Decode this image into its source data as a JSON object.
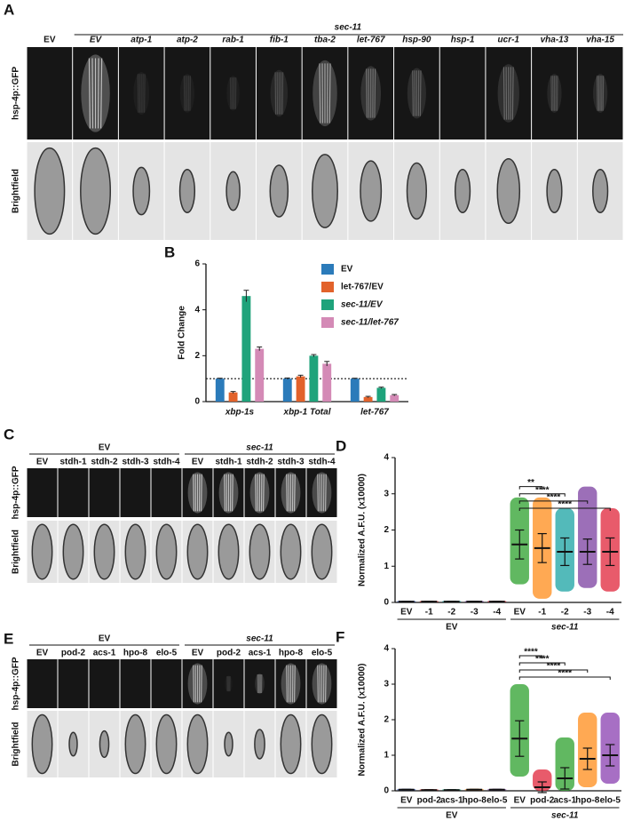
{
  "panel_a": {
    "label": "A",
    "group": "sec-11",
    "columns": [
      "EV",
      "EV",
      "atp-1",
      "atp-2",
      "rab-1",
      "fib-1",
      "tba-2",
      "let-767",
      "hsp-90",
      "hsp-1",
      "ucr-1",
      "vha-13",
      "vha-15"
    ],
    "rows": [
      "hsp-4p::GFP",
      "Brightfield"
    ]
  },
  "panel_c": {
    "label": "C",
    "groups": [
      "EV",
      "sec-11"
    ],
    "columns": [
      "EV",
      "stdh-1",
      "stdh-2",
      "stdh-3",
      "stdh-4",
      "EV",
      "stdh-1",
      "stdh-2",
      "stdh-3",
      "stdh-4"
    ],
    "rows": [
      "hsp-4p::GFP",
      "Brightfield"
    ]
  },
  "panel_e": {
    "label": "E",
    "groups": [
      "EV",
      "sec-11"
    ],
    "columns": [
      "EV",
      "pod-2",
      "acs-1",
      "hpo-8",
      "elo-5",
      "EV",
      "pod-2",
      "acs-1",
      "hpo-8",
      "elo-5"
    ],
    "rows": [
      "hsp-4p::GFP",
      "Brightfield"
    ]
  },
  "chart_data": [
    {
      "type": "bar",
      "panel_label": "B",
      "y_label": "Fold Change",
      "categories": [
        "xbp-1s",
        "xbp-1 Total",
        "let-767"
      ],
      "series": [
        {
          "name": "EV",
          "color": "#2b7bba",
          "values": [
            1.0,
            1.0,
            1.0
          ],
          "errors": [
            0.02,
            0.03,
            0.02
          ]
        },
        {
          "name": "let-767/EV",
          "color": "#e2622b",
          "values": [
            0.4,
            1.1,
            0.2
          ],
          "errors": [
            0.04,
            0.05,
            0.03
          ]
        },
        {
          "name": "sec-11/EV",
          "color": "#1fa37b",
          "values": [
            4.6,
            2.0,
            0.6
          ],
          "errors": [
            0.25,
            0.05,
            0.03
          ]
        },
        {
          "name": "sec-11/let-767",
          "color": "#d48ab6",
          "values": [
            2.3,
            1.65,
            0.28
          ],
          "errors": [
            0.08,
            0.1,
            0.03
          ]
        }
      ],
      "ylim": [
        0,
        6
      ],
      "yticks": [
        0,
        2,
        4,
        6
      ],
      "reference_line": 1
    },
    {
      "type": "dot",
      "panel_label": "D",
      "y_label": "Normalized A.F.U. (x10000)",
      "categories": [
        "EV",
        "-1",
        "-2",
        "-3",
        "-4",
        "EV",
        "-1",
        "-2",
        "-3",
        "-4"
      ],
      "groups": [
        "EV",
        "sec-11"
      ],
      "colors": [
        "#3b5bc4",
        "#d0302f",
        "#1aa3a3",
        "#7b3fa0",
        "#e0243a",
        "#2ca02c",
        "#ff8c1a",
        "#1aa3a3",
        "#7b3fa0",
        "#e0243a"
      ],
      "means": [
        0.02,
        0.02,
        0.02,
        0.02,
        0.02,
        1.6,
        1.5,
        1.4,
        1.4,
        1.4
      ],
      "sd": [
        0.01,
        0.01,
        0.01,
        0.01,
        0.01,
        0.4,
        0.4,
        0.38,
        0.35,
        0.38
      ],
      "min": [
        0,
        0,
        0,
        0,
        0,
        0.5,
        0.1,
        0.3,
        0.4,
        0.3
      ],
      "max": [
        0.05,
        0.05,
        0.05,
        0.05,
        0.05,
        2.9,
        2.9,
        2.6,
        3.2,
        2.6
      ],
      "ylim": [
        0,
        4
      ],
      "yticks": [
        0,
        1,
        2,
        3,
        4
      ],
      "annotations": [
        {
          "text": "**",
          "to": 6,
          "y": 3.2
        },
        {
          "text": "****",
          "to": 7,
          "y": 3.0
        },
        {
          "text": "****",
          "to": 8,
          "y": 2.8
        },
        {
          "text": "****",
          "to": 9,
          "y": 2.6
        }
      ]
    },
    {
      "type": "dot",
      "panel_label": "F",
      "y_label": "Normalized A.F.U. (x10000)",
      "categories": [
        "EV",
        "pod-2",
        "acs-1",
        "hpo-8",
        "elo-5",
        "EV",
        "pod-2",
        "acs-1",
        "hpo-8",
        "elo-5"
      ],
      "groups": [
        "EV",
        "sec-11"
      ],
      "colors": [
        "#3b5bc4",
        "#d0302f",
        "#1aa37b",
        "#ff8c1a",
        "#7b3fa0",
        "#2ca02c",
        "#e0243a",
        "#2ca02c",
        "#ff8c1a",
        "#8a3fb0"
      ],
      "means": [
        0.03,
        0.02,
        0.02,
        0.03,
        0.03,
        1.47,
        0.1,
        0.35,
        0.9,
        1.0
      ],
      "sd": [
        0.01,
        0.01,
        0.01,
        0.01,
        0.01,
        0.5,
        0.15,
        0.3,
        0.3,
        0.3
      ],
      "min": [
        0,
        0,
        0,
        0,
        0,
        0.4,
        0,
        0,
        0.1,
        0.2
      ],
      "max": [
        0.06,
        0.05,
        0.05,
        0.06,
        0.06,
        3.0,
        0.6,
        1.5,
        2.2,
        2.2
      ],
      "ylim": [
        0,
        4
      ],
      "yticks": [
        0,
        1,
        2,
        3,
        4
      ],
      "annotations": [
        {
          "text": "****",
          "to": 6,
          "y": 3.8
        },
        {
          "text": "****",
          "to": 7,
          "y": 3.6
        },
        {
          "text": "****",
          "to": 8,
          "y": 3.4
        },
        {
          "text": "****",
          "to": 9,
          "y": 3.2
        }
      ]
    }
  ]
}
